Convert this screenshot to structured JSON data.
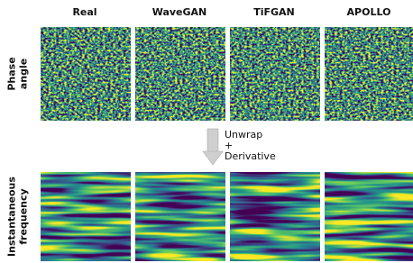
{
  "columns": [
    "Real",
    "WaveGAN",
    "TiFGAN",
    "APOLLO"
  ],
  "rows": [
    {
      "label_lines": [
        "Phase",
        "angle"
      ]
    },
    {
      "label_lines": [
        "Instantaneous",
        "frequency"
      ]
    }
  ],
  "transform": {
    "lines": [
      "Unwrap",
      "+",
      "Derivative"
    ]
  }
}
